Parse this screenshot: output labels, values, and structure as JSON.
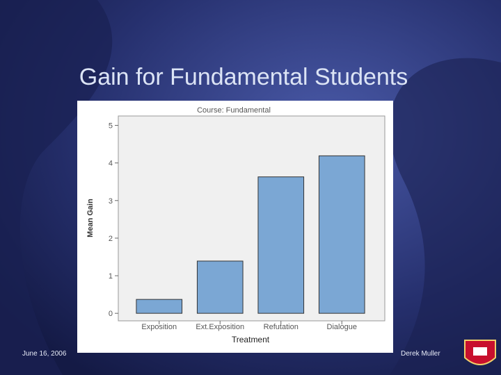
{
  "slide": {
    "title": "Gain for Fundamental Students",
    "date": "June 16, 2006",
    "author": "Derek Muller"
  },
  "chart_data": {
    "type": "bar",
    "title": "Course: Fundamental",
    "x_label": "Treatment",
    "y_label": "Mean Gain",
    "categories": [
      "Exposition",
      "Ext.Exposition",
      "Refutation",
      "Dialogue"
    ],
    "values": [
      0.37,
      1.39,
      3.63,
      4.19
    ],
    "color": "#7ba7d4",
    "ylim": [
      -0.2,
      5.25
    ],
    "yticks": [
      0,
      1,
      2,
      3,
      4,
      5
    ],
    "grid": false
  }
}
